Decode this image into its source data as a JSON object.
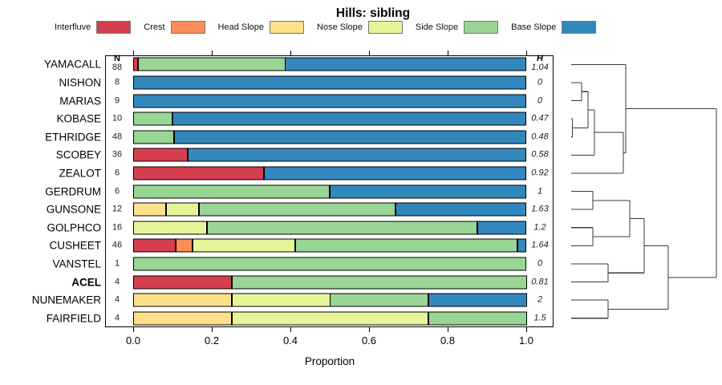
{
  "title": "Hills: sibling",
  "axis": {
    "xlabel": "Proportion",
    "ticks": [
      {
        "value": 0.0,
        "label": "0.0"
      },
      {
        "value": 0.2,
        "label": "0.2"
      },
      {
        "value": 0.4,
        "label": "0.4"
      },
      {
        "value": 0.6,
        "label": "0.6"
      },
      {
        "value": 0.8,
        "label": "0.8"
      },
      {
        "value": 1.0,
        "label": "1.0"
      }
    ]
  },
  "columns": {
    "n_header": "N",
    "h_header": "H"
  },
  "chart_data": {
    "type": "bar",
    "subtype": "horizontal-stacked-proportion",
    "title": "Hills: sibling",
    "xlabel": "Proportion",
    "xlim": [
      0,
      1
    ],
    "grid": false,
    "legend_position": "top",
    "categories": [
      "Interfluve",
      "Crest",
      "Head Slope",
      "Nose Slope",
      "Side Slope",
      "Base Slope"
    ],
    "colors": {
      "Interfluve": "#D53E4F",
      "Crest": "#FC8D59",
      "Head Slope": "#FEE08B",
      "Nose Slope": "#E6F598",
      "Side Slope": "#99D594",
      "Base Slope": "#3288BD"
    },
    "rows": [
      {
        "name": "YAMACALL",
        "n": 88,
        "h": "1.04",
        "bold": false,
        "segments": [
          [
            "Interfluve",
            0.0114
          ],
          [
            "Side Slope",
            0.375
          ],
          [
            "Base Slope",
            0.6136
          ]
        ]
      },
      {
        "name": "NISHON",
        "n": 8,
        "h": "0",
        "bold": false,
        "segments": [
          [
            "Base Slope",
            1.0
          ]
        ]
      },
      {
        "name": "MARIAS",
        "n": 9,
        "h": "0",
        "bold": false,
        "segments": [
          [
            "Base Slope",
            1.0
          ]
        ]
      },
      {
        "name": "KOBASE",
        "n": 10,
        "h": "0.47",
        "bold": false,
        "segments": [
          [
            "Side Slope",
            0.1
          ],
          [
            "Base Slope",
            0.9
          ]
        ]
      },
      {
        "name": "ETHRIDGE",
        "n": 48,
        "h": "0.48",
        "bold": false,
        "segments": [
          [
            "Side Slope",
            0.104
          ],
          [
            "Base Slope",
            0.896
          ]
        ]
      },
      {
        "name": "SCOBEY",
        "n": 36,
        "h": "0.58",
        "bold": false,
        "segments": [
          [
            "Interfluve",
            0.139
          ],
          [
            "Base Slope",
            0.861
          ]
        ]
      },
      {
        "name": "ZEALOT",
        "n": 6,
        "h": "0.92",
        "bold": false,
        "segments": [
          [
            "Interfluve",
            0.333
          ],
          [
            "Base Slope",
            0.667
          ]
        ]
      },
      {
        "name": "GERDRUM",
        "n": 6,
        "h": "1",
        "bold": false,
        "segments": [
          [
            "Side Slope",
            0.5
          ],
          [
            "Base Slope",
            0.5
          ]
        ]
      },
      {
        "name": "GUNSONE",
        "n": 12,
        "h": "1.63",
        "bold": false,
        "segments": [
          [
            "Head Slope",
            0.0833
          ],
          [
            "Nose Slope",
            0.0833
          ],
          [
            "Side Slope",
            0.5
          ],
          [
            "Base Slope",
            0.3334
          ]
        ]
      },
      {
        "name": "GOLPHCO",
        "n": 16,
        "h": "1.2",
        "bold": false,
        "segments": [
          [
            "Nose Slope",
            0.1875
          ],
          [
            "Side Slope",
            0.6875
          ],
          [
            "Base Slope",
            0.125
          ]
        ]
      },
      {
        "name": "CUSHEET",
        "n": 46,
        "h": "1.64",
        "bold": false,
        "segments": [
          [
            "Interfluve",
            0.109
          ],
          [
            "Crest",
            0.043
          ],
          [
            "Nose Slope",
            0.261
          ],
          [
            "Side Slope",
            0.565
          ],
          [
            "Base Slope",
            0.022
          ]
        ]
      },
      {
        "name": "VANSTEL",
        "n": 1,
        "h": "0",
        "bold": false,
        "segments": [
          [
            "Side Slope",
            1.0
          ]
        ]
      },
      {
        "name": "ACEL",
        "n": 4,
        "h": "0.81",
        "bold": true,
        "segments": [
          [
            "Interfluve",
            0.25
          ],
          [
            "Side Slope",
            0.75
          ]
        ]
      },
      {
        "name": "NUNEMAKER",
        "n": 4,
        "h": "2",
        "bold": false,
        "segments": [
          [
            "Head Slope",
            0.25
          ],
          [
            "Nose Slope",
            0.25
          ],
          [
            "Side Slope",
            0.25
          ],
          [
            "Base Slope",
            0.25
          ]
        ]
      },
      {
        "name": "FAIRFIELD",
        "n": 4,
        "h": "1.5",
        "bold": false,
        "segments": [
          [
            "Head Slope",
            0.25
          ],
          [
            "Nose Slope",
            0.5
          ],
          [
            "Side Slope",
            0.25
          ]
        ]
      }
    ],
    "dendrogram": {
      "orientation": "leaves-left-root-right",
      "tree": {
        "d": 1.0,
        "children": [
          {
            "d": 0.376,
            "children": [
              {
                "leaf": "YAMACALL"
              },
              {
                "d": 0.359,
                "children": [
                  {
                    "d": 0.16,
                    "children": [
                      {
                        "d": 0.116,
                        "children": [
                          {
                            "d": 0.072,
                            "children": [
                              {
                                "leaf": "NISHON"
                              },
                              {
                                "leaf": "MARIAS"
                              }
                            ]
                          },
                          {
                            "d": 0.008,
                            "children": [
                              {
                                "leaf": "KOBASE"
                              },
                              {
                                "leaf": "ETHRIDGE"
                              }
                            ]
                          }
                        ]
                      },
                      {
                        "leaf": "SCOBEY"
                      }
                    ]
                  },
                  {
                    "leaf": "ZEALOT"
                  }
                ]
              }
            ]
          },
          {
            "d": 0.668,
            "children": [
              {
                "d": 0.503,
                "children": [
                  {
                    "d": 0.403,
                    "children": [
                      {
                        "d": 0.149,
                        "children": [
                          {
                            "leaf": "GERDRUM"
                          },
                          {
                            "leaf": "GUNSONE"
                          }
                        ]
                      },
                      {
                        "d": 0.149,
                        "children": [
                          {
                            "leaf": "GOLPHCO"
                          },
                          {
                            "leaf": "CUSHEET"
                          }
                        ]
                      }
                    ]
                  },
                  {
                    "d": 0.254,
                    "children": [
                      {
                        "leaf": "VANSTEL"
                      },
                      {
                        "leaf": "ACEL"
                      }
                    ]
                  }
                ]
              },
              {
                "d": 0.254,
                "children": [
                  {
                    "leaf": "NUNEMAKER"
                  },
                  {
                    "leaf": "FAIRFIELD"
                  }
                ]
              }
            ]
          }
        ]
      }
    }
  }
}
